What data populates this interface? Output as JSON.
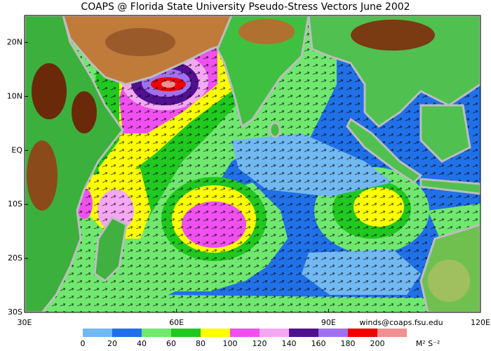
{
  "title": "COAPS @ Florida State University Pseudo-Stress Vectors June 2002",
  "lat_range": [
    -30,
    25
  ],
  "lat_ticks": [
    {
      "value": 20,
      "label": "20N"
    },
    {
      "value": 10,
      "label": "10N"
    },
    {
      "value": 0,
      "label": "EQ"
    },
    {
      "value": -10,
      "label": "10S"
    },
    {
      "value": -20,
      "label": "20S"
    },
    {
      "value": -30,
      "label": "30S"
    }
  ],
  "lon_range": [
    30,
    120
  ],
  "lon_ticks": [
    {
      "value": 30,
      "label": "30E"
    },
    {
      "value": 60,
      "label": "60E"
    },
    {
      "value": 90,
      "label": "90E"
    },
    {
      "value": 120,
      "label": "120E"
    }
  ],
  "credit": "winds@coaps.fsu.edu",
  "colorbar": {
    "ticks": [
      0,
      20,
      40,
      60,
      80,
      100,
      120,
      140,
      160,
      180,
      200
    ],
    "colors": [
      "#72b8f2",
      "#2070e8",
      "#70e870",
      "#20c820",
      "#ffff00",
      "#f050f0",
      "#f4a8f4",
      "#50108f",
      "#a070f0",
      "#f00000",
      "#f09090"
    ],
    "unit": "M² S⁻²"
  }
}
